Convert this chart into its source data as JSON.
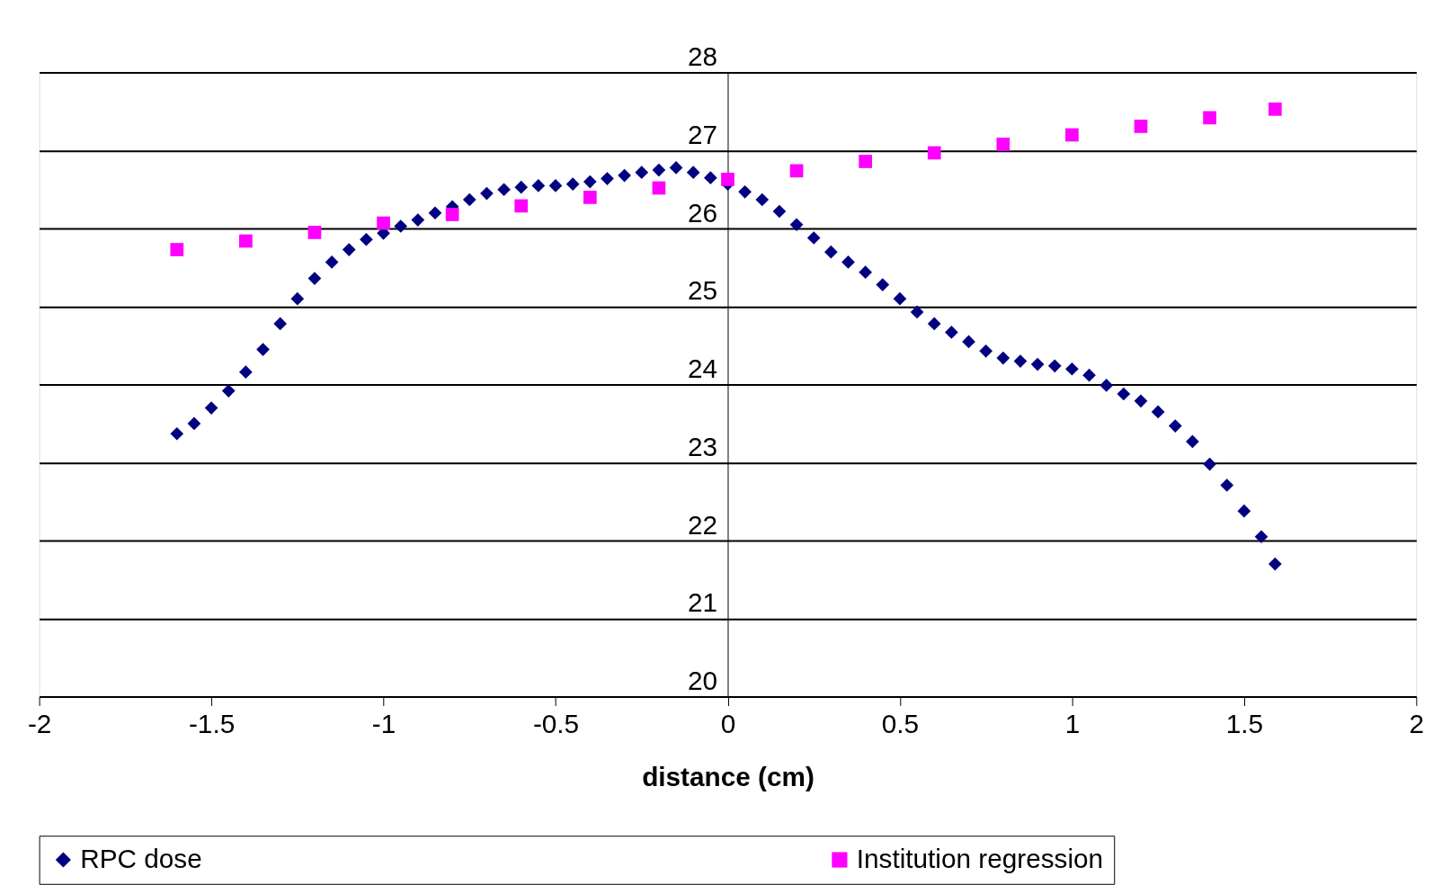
{
  "chart_data": {
    "type": "scatter",
    "xlabel": "distance (cm)",
    "xlim": [
      -2,
      2
    ],
    "xticks": [
      -2,
      -1.5,
      -1,
      -0.5,
      0,
      0.5,
      1,
      1.5,
      2
    ],
    "ylim": [
      20,
      28
    ],
    "yticks": [
      20,
      21,
      22,
      23,
      24,
      25,
      26,
      27,
      28
    ],
    "grid": "y",
    "legend": "bottom",
    "series": [
      {
        "name": "RPC dose",
        "color": "#000080",
        "marker": "diamond",
        "x": [
          -1.6,
          -1.55,
          -1.5,
          -1.45,
          -1.4,
          -1.35,
          -1.3,
          -1.25,
          -1.2,
          -1.15,
          -1.1,
          -1.05,
          -1.0,
          -0.95,
          -0.9,
          -0.85,
          -0.8,
          -0.75,
          -0.7,
          -0.65,
          -0.6,
          -0.55,
          -0.5,
          -0.45,
          -0.4,
          -0.35,
          -0.3,
          -0.25,
          -0.2,
          -0.15,
          -0.1,
          -0.05,
          0,
          0.05,
          0.1,
          0.15,
          0.2,
          0.25,
          0.3,
          0.35,
          0.4,
          0.45,
          0.5,
          0.55,
          0.6,
          0.65,
          0.7,
          0.75,
          0.8,
          0.85,
          0.9,
          0.95,
          1.0,
          1.05,
          1.1,
          1.15,
          1.2,
          1.25,
          1.3,
          1.35,
          1.4,
          1.45,
          1.5,
          1.55,
          1.59
        ],
        "values": [
          23.37,
          23.5,
          23.7,
          23.92,
          24.16,
          24.45,
          24.78,
          25.1,
          25.36,
          25.57,
          25.73,
          25.86,
          25.94,
          26.03,
          26.11,
          26.2,
          26.28,
          26.37,
          26.45,
          26.5,
          26.53,
          26.55,
          26.55,
          26.57,
          26.6,
          26.64,
          26.68,
          26.72,
          26.75,
          26.78,
          26.72,
          26.65,
          26.57,
          26.47,
          26.37,
          26.22,
          26.05,
          25.88,
          25.7,
          25.57,
          25.44,
          25.28,
          25.1,
          24.93,
          24.78,
          24.67,
          24.55,
          24.43,
          24.34,
          24.3,
          24.26,
          24.24,
          24.2,
          24.12,
          23.99,
          23.88,
          23.79,
          23.65,
          23.47,
          23.27,
          22.98,
          22.71,
          22.38,
          22.05,
          21.7
        ]
      },
      {
        "name": "Institution regression",
        "color": "#ff00ff",
        "marker": "square",
        "x": [
          -1.6,
          -1.4,
          -1.2,
          -1.0,
          -0.8,
          -0.6,
          -0.4,
          -0.2,
          0,
          0.2,
          0.4,
          0.6,
          0.8,
          1.0,
          1.2,
          1.4,
          1.59
        ],
        "values": [
          25.73,
          25.84,
          25.95,
          26.07,
          26.18,
          26.29,
          26.4,
          26.52,
          26.63,
          26.74,
          26.86,
          26.97,
          27.08,
          27.2,
          27.31,
          27.42,
          27.53
        ]
      }
    ]
  }
}
